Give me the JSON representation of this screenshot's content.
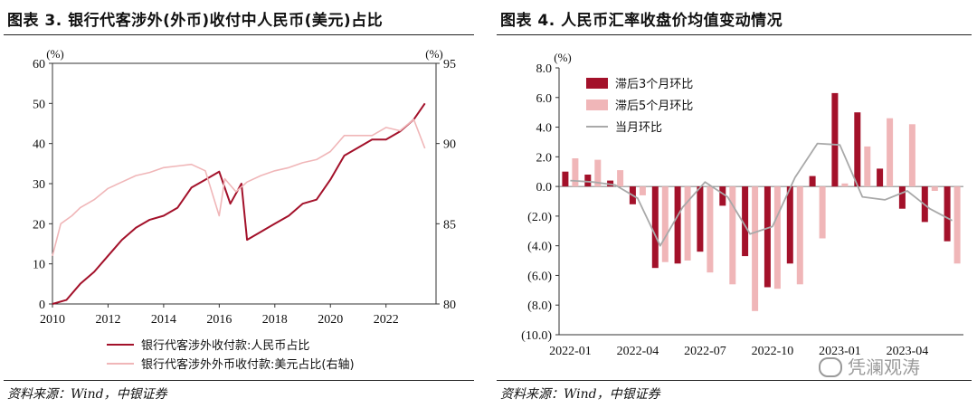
{
  "left": {
    "title": "图表 3. 银行代客涉外(外币)收付中人民币(美元)占比",
    "source": "资料来源：Wind，中银证券",
    "chart_data": {
      "type": "line",
      "unit_left": "(%)",
      "unit_right": "(%)",
      "ylim": [
        0,
        60
      ],
      "ylim_right": [
        80,
        95
      ],
      "yticks": [
        0,
        10,
        20,
        30,
        40,
        50,
        60
      ],
      "yticks_right": [
        80,
        85,
        90,
        95
      ],
      "xticks": [
        "2010",
        "2012",
        "2014",
        "2016",
        "2018",
        "2020",
        "2022"
      ],
      "xlim": [
        2010,
        2023.8
      ],
      "series": [
        {
          "name": "银行代客涉外收付款:人民币占比",
          "axis": "left",
          "color": "#a3112a",
          "x": [
            2010.0,
            2010.5,
            2011.0,
            2011.5,
            2012.0,
            2012.5,
            2013.0,
            2013.5,
            2014.0,
            2014.5,
            2015.0,
            2015.5,
            2016.0,
            2016.4,
            2016.8,
            2017.0,
            2017.5,
            2018.0,
            2018.5,
            2019.0,
            2019.5,
            2020.0,
            2020.5,
            2021.0,
            2021.5,
            2022.0,
            2022.5,
            2023.0,
            2023.4
          ],
          "values": [
            0,
            1,
            5,
            8,
            12,
            16,
            19,
            21,
            22,
            24,
            29,
            31,
            33,
            25,
            30,
            16,
            18,
            20,
            22,
            25,
            26,
            31,
            37,
            39,
            41,
            41,
            43,
            46,
            50
          ]
        },
        {
          "name": "银行代客涉外外币收付款:美元占比(右轴)",
          "axis": "right",
          "color": "#f0b6b8",
          "x": [
            2010.0,
            2010.3,
            2010.7,
            2011.0,
            2011.5,
            2012.0,
            2012.5,
            2013.0,
            2013.5,
            2014.0,
            2014.5,
            2015.0,
            2015.5,
            2016.0,
            2016.2,
            2016.6,
            2017.0,
            2017.5,
            2018.0,
            2018.5,
            2019.0,
            2019.5,
            2020.0,
            2020.5,
            2021.0,
            2021.5,
            2022.0,
            2022.5,
            2023.0,
            2023.4
          ],
          "values": [
            83,
            85,
            85.5,
            86,
            86.5,
            87.2,
            87.6,
            88,
            88.2,
            88.5,
            88.6,
            88.7,
            88.3,
            85.5,
            87.8,
            87,
            87.6,
            88,
            88.3,
            88.5,
            88.8,
            89,
            89.5,
            90.5,
            90.5,
            90.5,
            91,
            90.8,
            91.5,
            89.7
          ]
        }
      ]
    }
  },
  "right": {
    "title": "图表 4. 人民币汇率收盘价均值变动情况",
    "source": "资料来源：Wind，中银证券",
    "chart_data": {
      "type": "bar",
      "unit": "(%)",
      "ylim": [
        -10,
        8
      ],
      "yticks": [
        "8.0",
        "6.0",
        "4.0",
        "2.0",
        "0.0",
        "(2.0)",
        "(4.0)",
        "(6.0)",
        "(8.0)",
        "(10.0)"
      ],
      "ytick_values": [
        8,
        6,
        4,
        2,
        0,
        -2,
        -4,
        -6,
        -8,
        -10
      ],
      "xticks": [
        "2022-01",
        "2022-04",
        "2022-07",
        "2022-10",
        "2023-01",
        "2023-04"
      ],
      "categories": [
        "2022-01",
        "2022-02",
        "2022-03",
        "2022-04",
        "2022-05",
        "2022-06",
        "2022-07",
        "2022-08",
        "2022-09",
        "2022-10",
        "2022-11",
        "2022-12",
        "2023-01",
        "2023-02",
        "2023-03",
        "2023-04",
        "2023-05",
        "2023-06"
      ],
      "series": [
        {
          "name": "滞后3个月环比",
          "kind": "bar",
          "color": "#a3112a",
          "values": [
            1.0,
            0.8,
            0.4,
            -1.2,
            -5.5,
            -5.2,
            -4.4,
            -1.3,
            -4.7,
            -6.8,
            -5.2,
            0.7,
            6.3,
            5.0,
            1.2,
            -1.5,
            -2.4,
            -3.7
          ]
        },
        {
          "name": "滞后5个月环比",
          "kind": "bar",
          "color": "#f0b6b8",
          "values": [
            1.9,
            1.8,
            1.1,
            -0.6,
            -5.1,
            -5.0,
            -5.8,
            -6.6,
            -8.4,
            -6.9,
            -6.6,
            -3.5,
            0.2,
            2.7,
            4.6,
            4.2,
            -0.3,
            -5.2
          ]
        },
        {
          "name": "当月环比",
          "kind": "line",
          "color": "#a9a9a9",
          "values": [
            0.4,
            0.3,
            0.1,
            -0.8,
            -4.0,
            -1.4,
            0.3,
            -0.7,
            -3.2,
            -2.7,
            0.6,
            2.9,
            2.8,
            -0.7,
            -0.9,
            -0.3,
            -1.5,
            -2.3
          ]
        }
      ]
    }
  },
  "watermark": "凭澜观涛"
}
